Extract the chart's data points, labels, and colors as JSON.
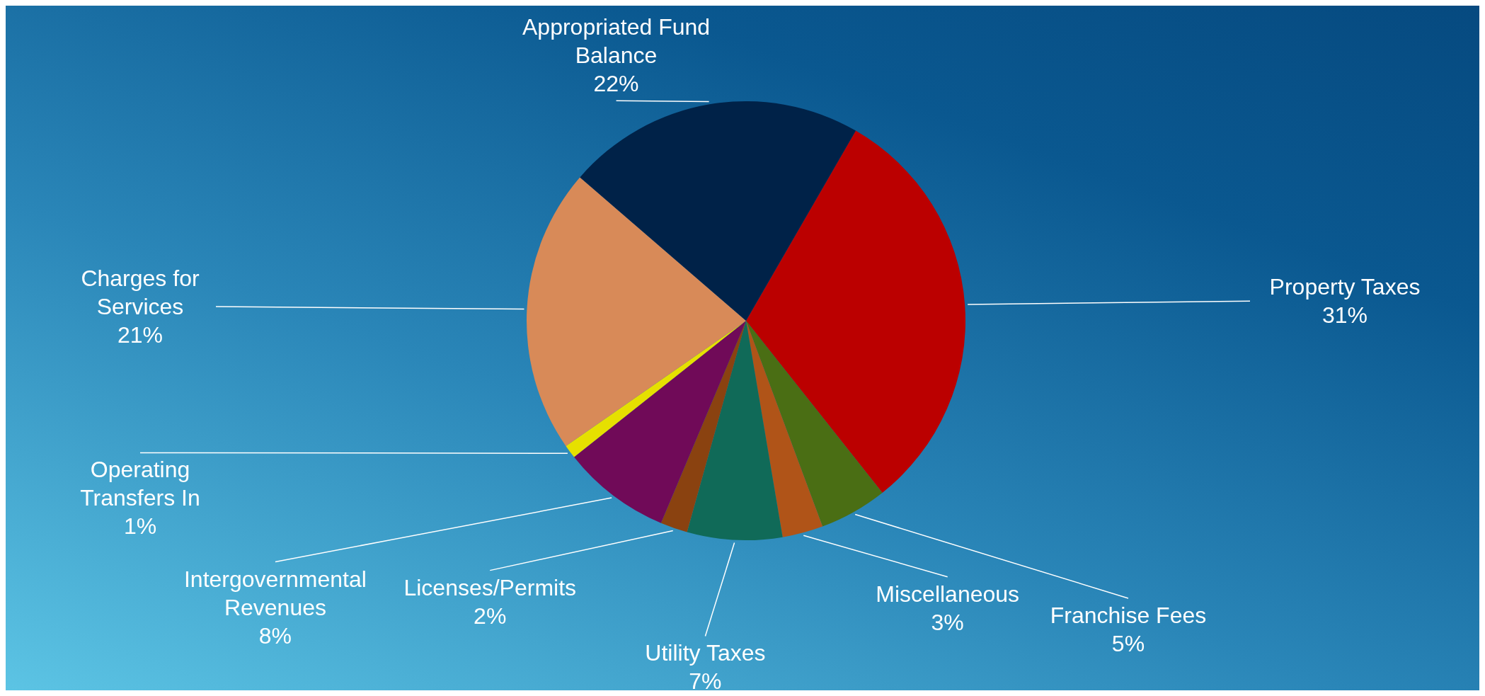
{
  "chart_data": {
    "type": "pie",
    "categories": [
      "Property Taxes",
      "Franchise Fees",
      "Miscellaneous",
      "Utility Taxes",
      "Licenses/Permits",
      "Intergovernmental Revenues",
      "Operating Transfers In",
      "Charges for Services",
      "Appropriated Fund Balance"
    ],
    "values": [
      31,
      5,
      3,
      7,
      2,
      8,
      1,
      21,
      22
    ],
    "value_labels": [
      "31%",
      "5%",
      "3%",
      "7%",
      "2%",
      "8%",
      "1%",
      "21%",
      "22%"
    ],
    "colors": [
      "#bb0000",
      "#4a6e14",
      "#b05418",
      "#106a58",
      "#8a4210",
      "#700a58",
      "#e6e000",
      "#d88a58",
      "#002248"
    ]
  }
}
